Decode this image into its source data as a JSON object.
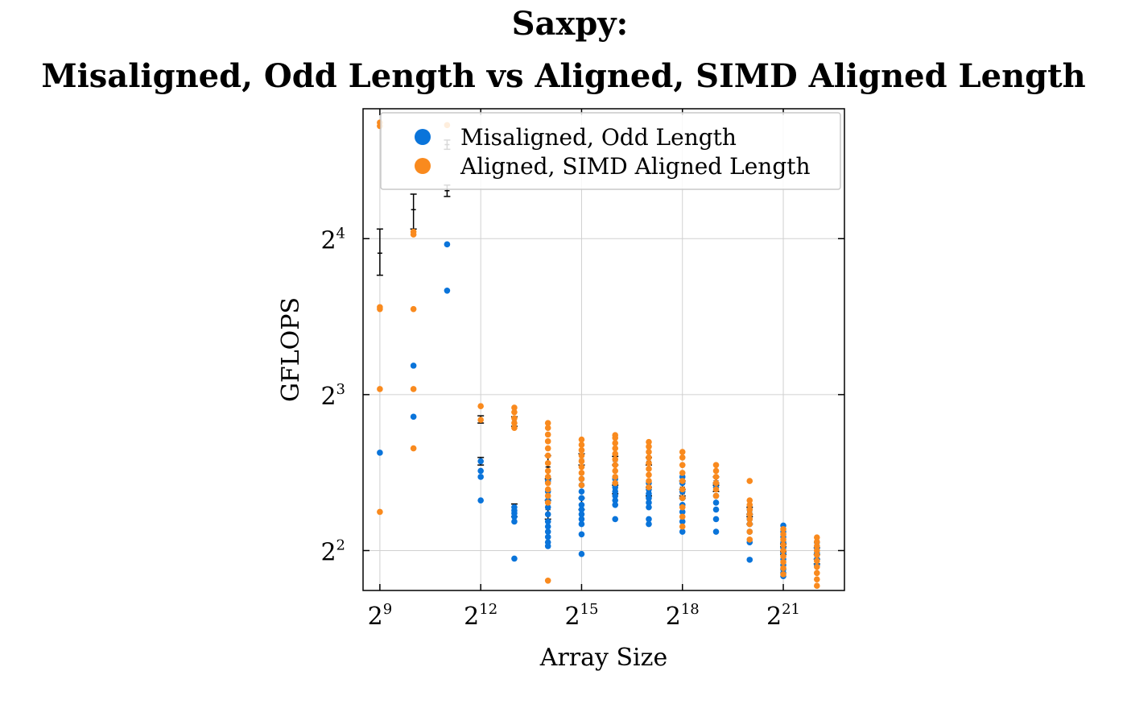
{
  "chart_data": {
    "type": "scatter",
    "title_lines": [
      "Saxpy:",
      "Misaligned, Odd Length vs Aligned, SIMD Aligned Length"
    ],
    "xlabel": "Array Size",
    "ylabel": "GFLOPS",
    "x_scale": "log2",
    "y_scale": "log2",
    "xlim": [
      362,
      7400000
    ],
    "ylim": [
      3.35,
      28.5
    ],
    "xticks": [
      512,
      4096,
      32768,
      262144,
      2097152
    ],
    "xtick_labels": [
      {
        "base": "2",
        "exp": "9"
      },
      {
        "base": "2",
        "exp": "12"
      },
      {
        "base": "2",
        "exp": "15"
      },
      {
        "base": "2",
        "exp": "18"
      },
      {
        "base": "2",
        "exp": "21"
      }
    ],
    "yticks": [
      4,
      8,
      16
    ],
    "ytick_labels": [
      {
        "base": "2",
        "exp": "2"
      },
      {
        "base": "2",
        "exp": "3"
      },
      {
        "base": "2",
        "exp": "4"
      }
    ],
    "grid": true,
    "legend_position": "top-right",
    "colors": {
      "misaligned": "#0a74da",
      "aligned": "#f98a1e",
      "errorbar": "#000000"
    },
    "series": [
      {
        "name": "Misaligned, Odd Length",
        "color": "#0a74da",
        "points": [
          [
            512,
            6.18
          ],
          [
            1024,
            7.25
          ],
          [
            1024,
            9.1
          ],
          [
            2048,
            12.7
          ],
          [
            2048,
            15.6
          ],
          [
            4096,
            5.0
          ],
          [
            4096,
            5.55
          ],
          [
            4096,
            5.7
          ],
          [
            4096,
            5.95
          ],
          [
            8192,
            3.86
          ],
          [
            8192,
            4.55
          ],
          [
            8192,
            4.65
          ],
          [
            8192,
            4.72
          ],
          [
            8192,
            4.78
          ],
          [
            8192,
            4.85
          ],
          [
            16384,
            4.08
          ],
          [
            16384,
            4.15
          ],
          [
            16384,
            4.25
          ],
          [
            16384,
            4.35
          ],
          [
            16384,
            4.45
          ],
          [
            16384,
            4.55
          ],
          [
            16384,
            4.7
          ],
          [
            16384,
            4.85
          ],
          [
            16384,
            5.0
          ],
          [
            16384,
            5.2
          ],
          [
            16384,
            5.45
          ],
          [
            32768,
            3.94
          ],
          [
            32768,
            4.3
          ],
          [
            32768,
            4.5
          ],
          [
            32768,
            4.6
          ],
          [
            32768,
            4.7
          ],
          [
            32768,
            4.8
          ],
          [
            32768,
            4.9
          ],
          [
            32768,
            5.05
          ],
          [
            32768,
            5.2
          ],
          [
            32768,
            5.35
          ],
          [
            32768,
            5.5
          ],
          [
            65536,
            4.6
          ],
          [
            65536,
            4.9
          ],
          [
            65536,
            5.0
          ],
          [
            65536,
            5.1
          ],
          [
            65536,
            5.2
          ],
          [
            65536,
            5.3
          ],
          [
            65536,
            5.4
          ],
          [
            65536,
            5.5
          ],
          [
            131072,
            4.5
          ],
          [
            131072,
            4.6
          ],
          [
            131072,
            4.85
          ],
          [
            131072,
            4.95
          ],
          [
            131072,
            5.05
          ],
          [
            131072,
            5.15
          ],
          [
            131072,
            5.25
          ],
          [
            131072,
            5.4
          ],
          [
            262144,
            4.35
          ],
          [
            262144,
            4.55
          ],
          [
            262144,
            4.75
          ],
          [
            262144,
            4.9
          ],
          [
            262144,
            5.05
          ],
          [
            262144,
            5.2
          ],
          [
            262144,
            5.4
          ],
          [
            262144,
            5.55
          ],
          [
            524288,
            4.35
          ],
          [
            524288,
            4.6
          ],
          [
            524288,
            4.8
          ],
          [
            524288,
            4.95
          ],
          [
            524288,
            5.1
          ],
          [
            524288,
            5.3
          ],
          [
            1048576,
            3.84
          ],
          [
            1048576,
            4.15
          ],
          [
            1048576,
            4.35
          ],
          [
            1048576,
            4.5
          ],
          [
            1048576,
            4.6
          ],
          [
            1048576,
            4.7
          ],
          [
            1048576,
            4.8
          ],
          [
            2097152,
            3.57
          ],
          [
            2097152,
            3.62
          ],
          [
            2097152,
            3.68
          ],
          [
            2097152,
            3.75
          ],
          [
            2097152,
            3.85
          ],
          [
            2097152,
            3.95
          ],
          [
            2097152,
            4.05
          ],
          [
            2097152,
            4.15
          ],
          [
            2097152,
            4.25
          ],
          [
            2097152,
            4.35
          ],
          [
            2097152,
            4.47
          ],
          [
            4194304,
            3.75
          ],
          [
            4194304,
            3.85
          ],
          [
            4194304,
            3.95
          ],
          [
            4194304,
            4.05
          ],
          [
            4194304,
            4.15
          ]
        ]
      },
      {
        "name": "Aligned, SIMD Aligned Length",
        "color": "#f98a1e",
        "points": [
          [
            512,
            4.75
          ],
          [
            512,
            8.2
          ],
          [
            512,
            11.7
          ],
          [
            512,
            11.8
          ],
          [
            512,
            26.4
          ],
          [
            512,
            26.8
          ],
          [
            1024,
            6.3
          ],
          [
            1024,
            8.2
          ],
          [
            1024,
            11.7
          ],
          [
            1024,
            16.3
          ],
          [
            1024,
            16.5
          ],
          [
            2048,
            26.5
          ],
          [
            4096,
            7.15
          ],
          [
            4096,
            7.6
          ],
          [
            8192,
            6.9
          ],
          [
            8192,
            7.05
          ],
          [
            8192,
            7.2
          ],
          [
            8192,
            7.4
          ],
          [
            8192,
            7.55
          ],
          [
            16384,
            3.5
          ],
          [
            16384,
            4.95
          ],
          [
            16384,
            5.1
          ],
          [
            16384,
            5.25
          ],
          [
            16384,
            5.4
          ],
          [
            16384,
            5.55
          ],
          [
            16384,
            5.7
          ],
          [
            16384,
            5.9
          ],
          [
            16384,
            6.1
          ],
          [
            16384,
            6.3
          ],
          [
            16384,
            6.5
          ],
          [
            16384,
            6.7
          ],
          [
            16384,
            6.9
          ],
          [
            16384,
            7.05
          ],
          [
            32768,
            5.35
          ],
          [
            32768,
            5.5
          ],
          [
            32768,
            5.65
          ],
          [
            32768,
            5.8
          ],
          [
            32768,
            5.95
          ],
          [
            32768,
            6.1
          ],
          [
            32768,
            6.25
          ],
          [
            32768,
            6.4
          ],
          [
            32768,
            6.55
          ],
          [
            65536,
            5.4
          ],
          [
            65536,
            5.55
          ],
          [
            65536,
            5.7
          ],
          [
            65536,
            5.85
          ],
          [
            65536,
            6.0
          ],
          [
            65536,
            6.15
          ],
          [
            65536,
            6.3
          ],
          [
            65536,
            6.45
          ],
          [
            65536,
            6.6
          ],
          [
            65536,
            6.68
          ],
          [
            131072,
            5.3
          ],
          [
            131072,
            5.45
          ],
          [
            131072,
            5.6
          ],
          [
            131072,
            5.75
          ],
          [
            131072,
            5.9
          ],
          [
            131072,
            6.05
          ],
          [
            131072,
            6.2
          ],
          [
            131072,
            6.35
          ],
          [
            131072,
            6.48
          ],
          [
            262144,
            4.45
          ],
          [
            262144,
            4.65
          ],
          [
            262144,
            4.85
          ],
          [
            262144,
            5.05
          ],
          [
            262144,
            5.25
          ],
          [
            262144,
            5.45
          ],
          [
            262144,
            5.65
          ],
          [
            262144,
            5.85
          ],
          [
            262144,
            6.05
          ],
          [
            262144,
            6.2
          ],
          [
            524288,
            5.1
          ],
          [
            524288,
            5.25
          ],
          [
            524288,
            5.4
          ],
          [
            524288,
            5.55
          ],
          [
            524288,
            5.7
          ],
          [
            524288,
            5.85
          ],
          [
            1048576,
            4.2
          ],
          [
            1048576,
            4.35
          ],
          [
            1048576,
            4.5
          ],
          [
            1048576,
            4.6
          ],
          [
            1048576,
            4.7
          ],
          [
            1048576,
            4.8
          ],
          [
            1048576,
            4.9
          ],
          [
            1048576,
            5.0
          ],
          [
            1048576,
            5.45
          ],
          [
            2097152,
            3.6
          ],
          [
            2097152,
            3.7
          ],
          [
            2097152,
            3.8
          ],
          [
            2097152,
            3.9
          ],
          [
            2097152,
            4.0
          ],
          [
            2097152,
            4.1
          ],
          [
            2097152,
            4.2
          ],
          [
            2097152,
            4.3
          ],
          [
            2097152,
            4.4
          ],
          [
            4194304,
            3.42
          ],
          [
            4194304,
            3.52
          ],
          [
            4194304,
            3.62
          ],
          [
            4194304,
            3.72
          ],
          [
            4194304,
            3.82
          ],
          [
            4194304,
            3.92
          ],
          [
            4194304,
            4.0
          ],
          [
            4194304,
            4.08
          ],
          [
            4194304,
            4.16
          ],
          [
            4194304,
            4.24
          ]
        ]
      }
    ],
    "error_bars": [
      {
        "x": 512,
        "y": 15.0,
        "low": 13.6,
        "high": 16.7
      },
      {
        "x": 1024,
        "y": 18.2,
        "low": 16.7,
        "high": 19.5
      },
      {
        "x": 2048,
        "y": 19.8,
        "low": 19.3,
        "high": 20.3
      },
      {
        "x": 2048,
        "y": 24.3,
        "low": 23.8,
        "high": 24.8
      },
      {
        "x": 4096,
        "y": 7.15,
        "low": 7.05,
        "high": 7.28
      },
      {
        "x": 4096,
        "y": 5.95,
        "low": 5.85,
        "high": 6.05
      },
      {
        "x": 8192,
        "y": 7.1,
        "low": 6.95,
        "high": 7.25
      },
      {
        "x": 8192,
        "y": 4.78,
        "low": 4.65,
        "high": 4.92
      },
      {
        "x": 16384,
        "y": 5.8,
        "low": 5.5,
        "high": 6.1
      },
      {
        "x": 16384,
        "y": 4.8,
        "low": 4.6,
        "high": 5.0
      },
      {
        "x": 32768,
        "y": 6.0,
        "low": 5.85,
        "high": 6.15
      },
      {
        "x": 32768,
        "y": 4.9,
        "low": 4.8,
        "high": 5.05
      },
      {
        "x": 65536,
        "y": 5.95,
        "low": 5.85,
        "high": 6.08
      },
      {
        "x": 65536,
        "y": 5.25,
        "low": 5.15,
        "high": 5.35
      },
      {
        "x": 131072,
        "y": 5.95,
        "low": 5.85,
        "high": 6.05
      },
      {
        "x": 131072,
        "y": 5.2,
        "low": 5.1,
        "high": 5.3
      },
      {
        "x": 262144,
        "y": 5.3,
        "low": 5.1,
        "high": 5.45
      },
      {
        "x": 262144,
        "y": 5.15,
        "low": 5.05,
        "high": 5.25
      },
      {
        "x": 524288,
        "y": 5.45,
        "low": 5.35,
        "high": 5.55
      },
      {
        "x": 524288,
        "y": 5.3,
        "low": 5.2,
        "high": 5.4
      },
      {
        "x": 1048576,
        "y": 4.75,
        "low": 4.65,
        "high": 4.85
      },
      {
        "x": 1048576,
        "y": 4.6,
        "low": 4.5,
        "high": 4.7
      },
      {
        "x": 2097152,
        "y": 4.05,
        "low": 3.98,
        "high": 4.12
      },
      {
        "x": 2097152,
        "y": 4.0,
        "low": 3.93,
        "high": 4.07
      },
      {
        "x": 4194304,
        "y": 3.95,
        "low": 3.85,
        "high": 4.05
      },
      {
        "x": 4194304,
        "y": 3.85,
        "low": 3.77,
        "high": 3.93
      }
    ]
  }
}
